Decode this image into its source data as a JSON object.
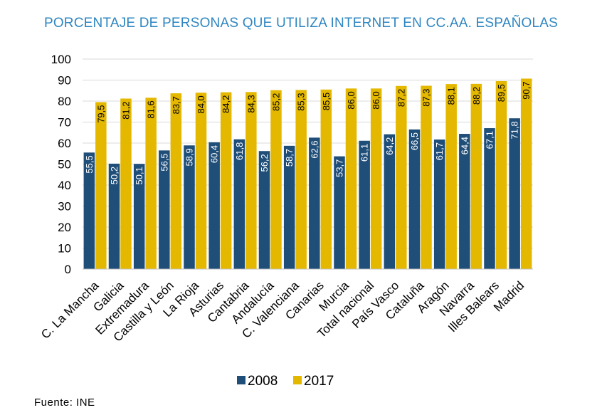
{
  "source": "Fuente:  INE",
  "chart_data": {
    "type": "bar",
    "title": "PORCENTAJE DE PERSONAS QUE UTILIZA INTERNET EN CC.AA. ESPAÑOLAS",
    "xlabel": "",
    "ylabel": "",
    "ylim": [
      0,
      100
    ],
    "yticks": [
      0,
      10,
      20,
      30,
      40,
      50,
      60,
      70,
      80,
      90,
      100
    ],
    "grid": "horizontal",
    "legend_position": "bottom",
    "categories": [
      "C. La Mancha",
      "Galicia",
      "Extremadura",
      "Castilla y León",
      "La Rioja",
      "Asturias",
      "Cantabria",
      "Andalucía",
      "C. Valenciana",
      "Canarias",
      "Murcia",
      "Total nacional",
      "País Vasco",
      "Cataluña",
      "Aragón",
      "Navarra",
      "Illes Balears",
      "Madrid"
    ],
    "series": [
      {
        "name": "2008",
        "color": "#1f4e79",
        "values": [
          55.5,
          50.2,
          50.1,
          56.5,
          58.9,
          60.4,
          61.8,
          56.2,
          58.7,
          62.6,
          53.7,
          61.1,
          64.2,
          66.5,
          61.7,
          64.4,
          67.1,
          71.8
        ],
        "labels": [
          "55,5",
          "50,2",
          "50,1",
          "56,5",
          "58,9",
          "60,4",
          "61,8",
          "56,2",
          "58,7",
          "62,6",
          "53,7",
          "61,1",
          "64,2",
          "66,5",
          "61,7",
          "64,4",
          "67,1",
          "71,8"
        ]
      },
      {
        "name": "2017",
        "color": "#e5b800",
        "values": [
          79.5,
          81.2,
          81.6,
          83.7,
          84.0,
          84.2,
          84.3,
          85.2,
          85.3,
          85.5,
          86.0,
          86.0,
          87.2,
          87.3,
          88.1,
          88.2,
          89.5,
          90.7
        ],
        "labels": [
          "79,5",
          "81,2",
          "81,6",
          "83,7",
          "84,0",
          "84,2",
          "84,3",
          "85,2",
          "85,3",
          "85,5",
          "86,0",
          "86,0",
          "87,2",
          "87,3",
          "88,1",
          "88,2",
          "89,5",
          "90,7"
        ]
      }
    ]
  }
}
